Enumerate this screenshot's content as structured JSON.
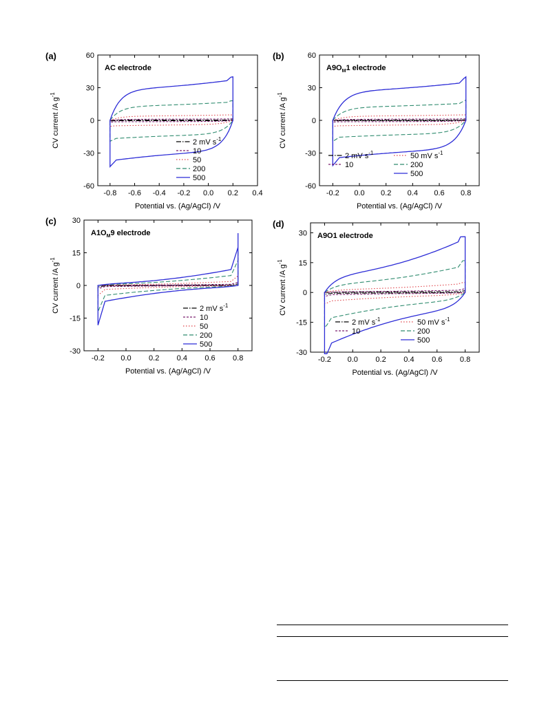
{
  "chart_data": [
    {
      "type": "line",
      "panel_label": "(a)",
      "title": "AC electrode",
      "xlabel": "Potential vs. (Ag/AgCl) /V",
      "ylabel": "CV current /A g",
      "ylabel_sup": "-1",
      "xlim": [
        -0.9,
        0.4
      ],
      "ylim": [
        -60,
        60
      ],
      "xticks": [
        -0.8,
        -0.6,
        -0.4,
        -0.2,
        0.0,
        0.2,
        0.4
      ],
      "xtick_labels": [
        "-0.8",
        "-0.6",
        "-0.4",
        "-0.2",
        "0.0",
        "0.2",
        "0.4"
      ],
      "yticks": [
        -60,
        -30,
        0,
        30,
        60
      ],
      "ytick_labels": [
        "-60",
        "-30",
        "0",
        "30",
        "60"
      ],
      "legend_position": "bottom-right",
      "series": [
        {
          "name": "2 mV s",
          "name_sup": "-1",
          "color": "#000000",
          "dash": "dashdot",
          "rate": 2,
          "x_min": -0.8,
          "x_max": 0.2,
          "i_mid": 0.3,
          "i_end": 0.5
        },
        {
          "name": "10",
          "color": "#7b1e6e",
          "dash": "short",
          "rate": 10,
          "x_min": -0.8,
          "x_max": 0.2,
          "i_mid": 1.2,
          "i_end": 1.5
        },
        {
          "name": "50",
          "color": "#e0444a",
          "dash": "dot",
          "rate": 50,
          "x_min": -0.8,
          "x_max": 0.2,
          "i_mid": 4.5,
          "i_end": 5
        },
        {
          "name": "200",
          "color": "#2e8b6e",
          "dash": "dash",
          "rate": 200,
          "x_min": -0.8,
          "x_max": 0.2,
          "i_mid": 15,
          "i_end": 18
        },
        {
          "name": "500",
          "color": "#2b2bd6",
          "dash": "solid",
          "rate": 500,
          "x_min": -0.8,
          "x_max": 0.2,
          "i_mid": 33,
          "i_end": 40
        }
      ]
    },
    {
      "type": "line",
      "panel_label": "(b)",
      "title": "A9O",
      "title_sub": "M",
      "title_after": "1 electrode",
      "xlabel": "Potential vs. (Ag/AgCl) /V",
      "ylabel": "CV current /A g",
      "ylabel_sup": "-1",
      "xlim": [
        -0.3,
        0.9
      ],
      "ylim": [
        -60,
        60
      ],
      "xticks": [
        -0.2,
        0.0,
        0.2,
        0.4,
        0.6,
        0.8
      ],
      "xtick_labels": [
        "-0.2",
        "0.0",
        "0.2",
        "0.4",
        "0.6",
        "0.8"
      ],
      "yticks": [
        -60,
        -30,
        0,
        30,
        60
      ],
      "ytick_labels": [
        "-60",
        "-30",
        "0",
        "30",
        "60"
      ],
      "legend_position": "bottom",
      "series": [
        {
          "name": "2 mV s",
          "name_sup": "-1",
          "color": "#000000",
          "dash": "dashdot",
          "rate": 2,
          "x_min": -0.2,
          "x_max": 0.8,
          "i_mid": 0.3,
          "i_end": 0.5
        },
        {
          "name": "10",
          "color": "#7b1e6e",
          "dash": "short",
          "rate": 10,
          "x_min": -0.2,
          "x_max": 0.8,
          "i_mid": 1.2,
          "i_end": 1.5
        },
        {
          "name": "50 mV s",
          "name_sup": "-1",
          "color": "#e0444a",
          "dash": "dot",
          "rate": 50,
          "x_min": -0.2,
          "x_max": 0.8,
          "i_mid": 4.5,
          "i_end": 5
        },
        {
          "name": "200",
          "color": "#2e8b6e",
          "dash": "dash",
          "rate": 200,
          "x_min": -0.2,
          "x_max": 0.8,
          "i_mid": 14,
          "i_end": 19
        },
        {
          "name": "500",
          "color": "#2b2bd6",
          "dash": "solid",
          "rate": 500,
          "x_min": -0.2,
          "x_max": 0.8,
          "i_mid": 31,
          "i_end": 40
        }
      ]
    },
    {
      "type": "line",
      "panel_label": "(c)",
      "title": "A1O",
      "title_sub": "M",
      "title_after": "9 electrode",
      "xlabel": "Potential vs. (Ag/AgCl) /V",
      "ylabel": "CV current /A g",
      "ylabel_sup": "-1",
      "xlim": [
        -0.3,
        0.9
      ],
      "ylim": [
        -30,
        30
      ],
      "xticks": [
        -0.2,
        0.0,
        0.2,
        0.4,
        0.6,
        0.8
      ],
      "xtick_labels": [
        "-0.2",
        "0.0",
        "0.2",
        "0.4",
        "0.6",
        "0.8"
      ],
      "yticks": [
        -30,
        -15,
        0,
        15,
        30
      ],
      "ytick_labels": [
        "-30",
        "-15",
        "0",
        "15",
        "30"
      ],
      "legend_position": "bottom-right",
      "series": [
        {
          "name": "2 mV s",
          "name_sup": "-1",
          "color": "#000000",
          "dash": "dashdot",
          "rate": 2,
          "x_min": -0.2,
          "x_max": 0.8,
          "i_mid": 0.2,
          "i_end": 1
        },
        {
          "name": "10",
          "color": "#7b1e6e",
          "dash": "short",
          "rate": 10,
          "x_min": -0.2,
          "x_max": 0.8,
          "i_mid": 0.6,
          "i_end": 2
        },
        {
          "name": "50",
          "color": "#e0444a",
          "dash": "dot",
          "rate": 50,
          "x_min": -0.2,
          "x_max": 0.8,
          "i_mid": 2,
          "i_end": 6
        },
        {
          "name": "200",
          "color": "#2e8b6e",
          "dash": "dash",
          "rate": 200,
          "x_min": -0.2,
          "x_max": 0.8,
          "i_mid": 5,
          "i_end": 16
        },
        {
          "name": "500",
          "color": "#2b2bd6",
          "dash": "solid",
          "rate": 500,
          "x_min": -0.2,
          "x_max": 0.8,
          "i_mid": 8,
          "i_end": 24
        }
      ]
    },
    {
      "type": "line",
      "panel_label": "(d)",
      "title": "A9O1 electrode",
      "xlabel": "Potential vs. (Ag/AgCl) /V",
      "ylabel": "CV current /A g",
      "ylabel_sup": "-1",
      "xlim": [
        -0.3,
        0.9
      ],
      "ylim": [
        -30,
        35
      ],
      "xticks": [
        -0.2,
        0.0,
        0.2,
        0.4,
        0.6,
        0.8
      ],
      "xtick_labels": [
        "-0.2",
        "0.0",
        "0.2",
        "0.4",
        "0.6",
        "0.8"
      ],
      "yticks": [
        -30,
        -15,
        0,
        15,
        30
      ],
      "ytick_labels": [
        "-30",
        "-15",
        "0",
        "15",
        "30"
      ],
      "legend_position": "bottom",
      "series": [
        {
          "name": "2 mV s",
          "name_sup": "-1",
          "color": "#000000",
          "dash": "dashdot",
          "rate": 2,
          "x_min": -0.2,
          "x_max": 0.8,
          "i_mid": 0.3,
          "i_end": 1
        },
        {
          "name": "10",
          "color": "#7b1e6e",
          "dash": "short",
          "rate": 10,
          "x_min": -0.2,
          "x_max": 0.8,
          "i_mid": 0.8,
          "i_end": 2
        },
        {
          "name": "50 mV s",
          "name_sup": "-1",
          "color": "#e0444a",
          "dash": "dot",
          "rate": 50,
          "x_min": -0.2,
          "x_max": 0.8,
          "i_mid": 3,
          "i_end": 5
        },
        {
          "name": "200",
          "color": "#2e8b6e",
          "dash": "dash",
          "rate": 200,
          "x_min": -0.2,
          "x_max": 0.8,
          "i_mid": 9,
          "i_end": 16
        },
        {
          "name": "500",
          "color": "#2b2bd6",
          "dash": "solid",
          "rate": 500,
          "x_min": -0.2,
          "x_max": 0.8,
          "i_mid": 18,
          "i_end": 28
        }
      ]
    }
  ]
}
